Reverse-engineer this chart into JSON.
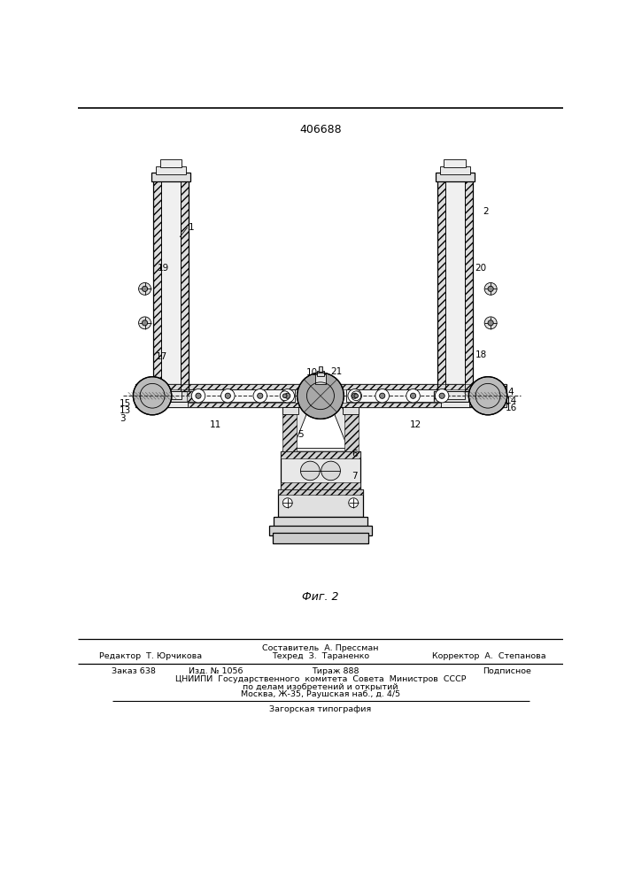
{
  "patent_number": "406688",
  "fig_label": "Фиг. 2",
  "background_color": "#ffffff",
  "line_color": "#000000",
  "footer": {
    "line1_left": "Редактор  Т. Юрчикова",
    "line1_center": "Составитель  А. Прессман",
    "line1_right": "Корректор  А.  Степанова",
    "line2_center": "Техред  З.  Тараненко",
    "line3_left": "Заказ 638",
    "line3_c1": "Изд. № 1056",
    "line3_c2": "Тираж 888",
    "line3_right": "Подписное",
    "line4": "ЦНИИПИ  Государственного  комитета  Совета  Министров  СССР",
    "line5": "по делам изобретений и открытий",
    "line6": "Москва, Ж-35, Раушская наб., д. 4/5",
    "line7": "Загорская типография"
  }
}
